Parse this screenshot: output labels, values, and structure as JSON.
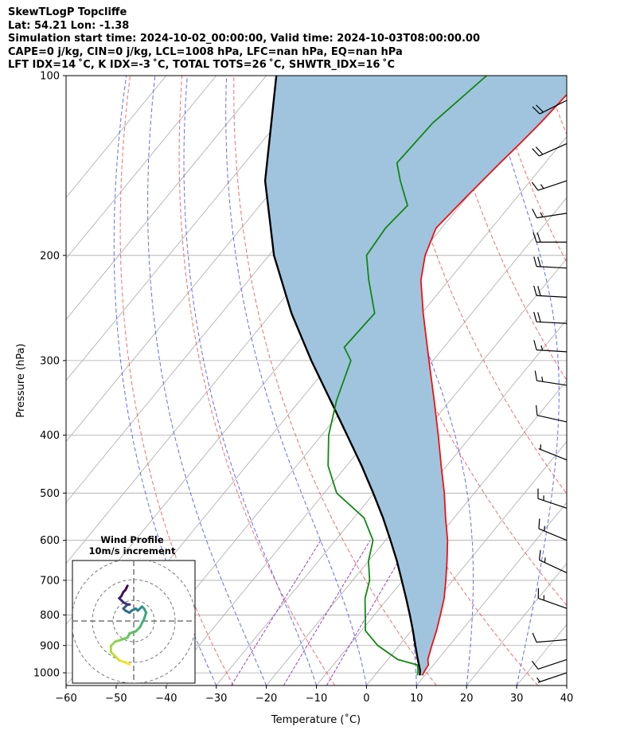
{
  "header": {
    "line1": "SkewTLogP Topcliffe",
    "line2": "Lat: 54.21   Lon: -1.38",
    "line3": "Simulation start time: 2024-10-02_00:00:00, Valid time: 2024-10-03T08:00:00.00",
    "line4": "CAPE=0 j/kg, CIN=0 j/kg, LCL=1008 hPa, LFC=nan hPa, EQ=nan hPa",
    "line5": "LFT IDX=14 ˚C, K IDX=-3 ˚C, TOTAL TOTS=26 ˚C, SHWTR_IDX=16 ˚C"
  },
  "colors": {
    "temperature": "#ee1111",
    "dewpoint": "#118811",
    "parcel": "#000000",
    "shade": "#a0c4de",
    "dry_adiabat": "#ee5555",
    "moist_adiabat": "#4455ee",
    "mixing_ratio": "#9944bb",
    "isotherm": "#aaaaaa"
  },
  "chart_data": {
    "type": "line",
    "title": "",
    "xlabel": "Temperature (˚C)",
    "ylabel": "Pressure (hPa)",
    "xlim": [
      -60,
      40
    ],
    "ylim": [
      1050,
      100
    ],
    "yscale": "log",
    "grid": true,
    "xticks": [
      "−60",
      "−50",
      "−40",
      "−30",
      "−20",
      "−10",
      "0",
      "10",
      "20",
      "30",
      "40"
    ],
    "yticks": [
      "100",
      "200",
      "300",
      "400",
      "500",
      "600",
      "700",
      "800",
      "900",
      "1000"
    ],
    "series": [
      {
        "name": "",
        "values_type": "temperature",
        "pressure": [
          1010,
          990,
          970,
          950,
          900,
          850,
          800,
          750,
          700,
          650,
          600,
          550,
          500,
          450,
          400,
          350,
          300,
          250,
          220,
          200,
          180,
          160,
          140,
          130,
          120,
          110,
          100
        ],
        "temp_c": [
          9.5,
          9.2,
          9.0,
          8.0,
          6.5,
          5.0,
          3.2,
          1.2,
          -1.4,
          -4.3,
          -7.6,
          -11.7,
          -16.0,
          -21.1,
          -26.7,
          -33.2,
          -40.8,
          -49.7,
          -55.6,
          -58.8,
          -61.1,
          -60.2,
          -59.0,
          -58.2,
          -57.5,
          -57.0,
          -56.4
        ]
      },
      {
        "name": "",
        "values_type": "dewpoint",
        "pressure": [
          1010,
          990,
          970,
          950,
          900,
          850,
          800,
          750,
          700,
          650,
          600,
          550,
          500,
          450,
          400,
          350,
          300,
          285,
          250,
          220,
          200,
          180,
          165,
          150,
          140,
          120,
          100
        ],
        "temp_c": [
          8.5,
          7.8,
          6.8,
          2.0,
          -4.3,
          -9.2,
          -11.8,
          -14.6,
          -16.6,
          -20.0,
          -22.5,
          -28.0,
          -37.5,
          -43.7,
          -48.6,
          -52.7,
          -56.4,
          -59.9,
          -59.4,
          -66.0,
          -70.5,
          -71.2,
          -70.5,
          -76.0,
          -79.6,
          -79.0,
          -76.0
        ]
      },
      {
        "name": "",
        "values_type": "parcel",
        "pressure": [
          1010,
          990,
          950,
          900,
          850,
          800,
          750,
          700,
          650,
          600,
          550,
          500,
          450,
          400,
          350,
          300,
          250,
          200,
          150,
          100
        ],
        "temp_c": [
          9.0,
          8.2,
          6.0,
          3.2,
          0.3,
          -2.9,
          -6.4,
          -10.2,
          -14.3,
          -19.0,
          -24.2,
          -30.2,
          -37.0,
          -44.9,
          -53.9,
          -64.3,
          -76.0,
          -89.0,
          -103.0,
          -118.0
        ]
      }
    ],
    "inset": {
      "title_line1": "Wind Profile",
      "title_line2": "10m/s increment",
      "rings_ms": [
        10,
        20,
        30
      ],
      "hodograph_u": [
        -2,
        -4,
        -7,
        -9,
        -11,
        -11,
        -9,
        -6,
        -3,
        -2,
        1,
        3,
        4,
        5,
        6,
        5,
        4,
        3,
        2,
        1,
        -1,
        -2,
        -4,
        -5,
        -4,
        -3,
        -2,
        -2,
        -3,
        -5,
        -7,
        -6,
        -5,
        -4,
        -3
      ],
      "hodograph_v": [
        -21,
        -20,
        -19,
        -17,
        -15,
        -12,
        -10,
        -9,
        -8,
        -6,
        -5,
        -3,
        -1,
        1,
        4,
        6,
        7,
        6,
        5,
        6,
        5,
        4,
        5,
        6,
        7,
        8,
        8,
        8,
        8,
        9,
        11,
        12,
        14,
        15,
        17
      ]
    },
    "barbs": [
      {
        "p": 110,
        "u": 20,
        "v": 10
      },
      {
        "p": 130,
        "u": 18,
        "v": 8
      },
      {
        "p": 150,
        "u": 15,
        "v": 5
      },
      {
        "p": 170,
        "u": 13,
        "v": 2
      },
      {
        "p": 190,
        "u": 20,
        "v": 0
      },
      {
        "p": 210,
        "u": 18,
        "v": -1
      },
      {
        "p": 235,
        "u": 18,
        "v": -1
      },
      {
        "p": 260,
        "u": 18,
        "v": -1
      },
      {
        "p": 290,
        "u": 16,
        "v": -1
      },
      {
        "p": 330,
        "u": 13,
        "v": -2
      },
      {
        "p": 380,
        "u": 9,
        "v": -2
      },
      {
        "p": 440,
        "u": 5,
        "v": -2
      },
      {
        "p": 530,
        "u": 15,
        "v": -5
      },
      {
        "p": 600,
        "u": 12,
        "v": -5
      },
      {
        "p": 680,
        "u": 15,
        "v": -7
      },
      {
        "p": 780,
        "u": 14,
        "v": -5
      },
      {
        "p": 880,
        "u": 12,
        "v": 1
      },
      {
        "p": 950,
        "u": 9,
        "v": 3
      },
      {
        "p": 1000,
        "u": 6,
        "v": 2
      }
    ]
  }
}
